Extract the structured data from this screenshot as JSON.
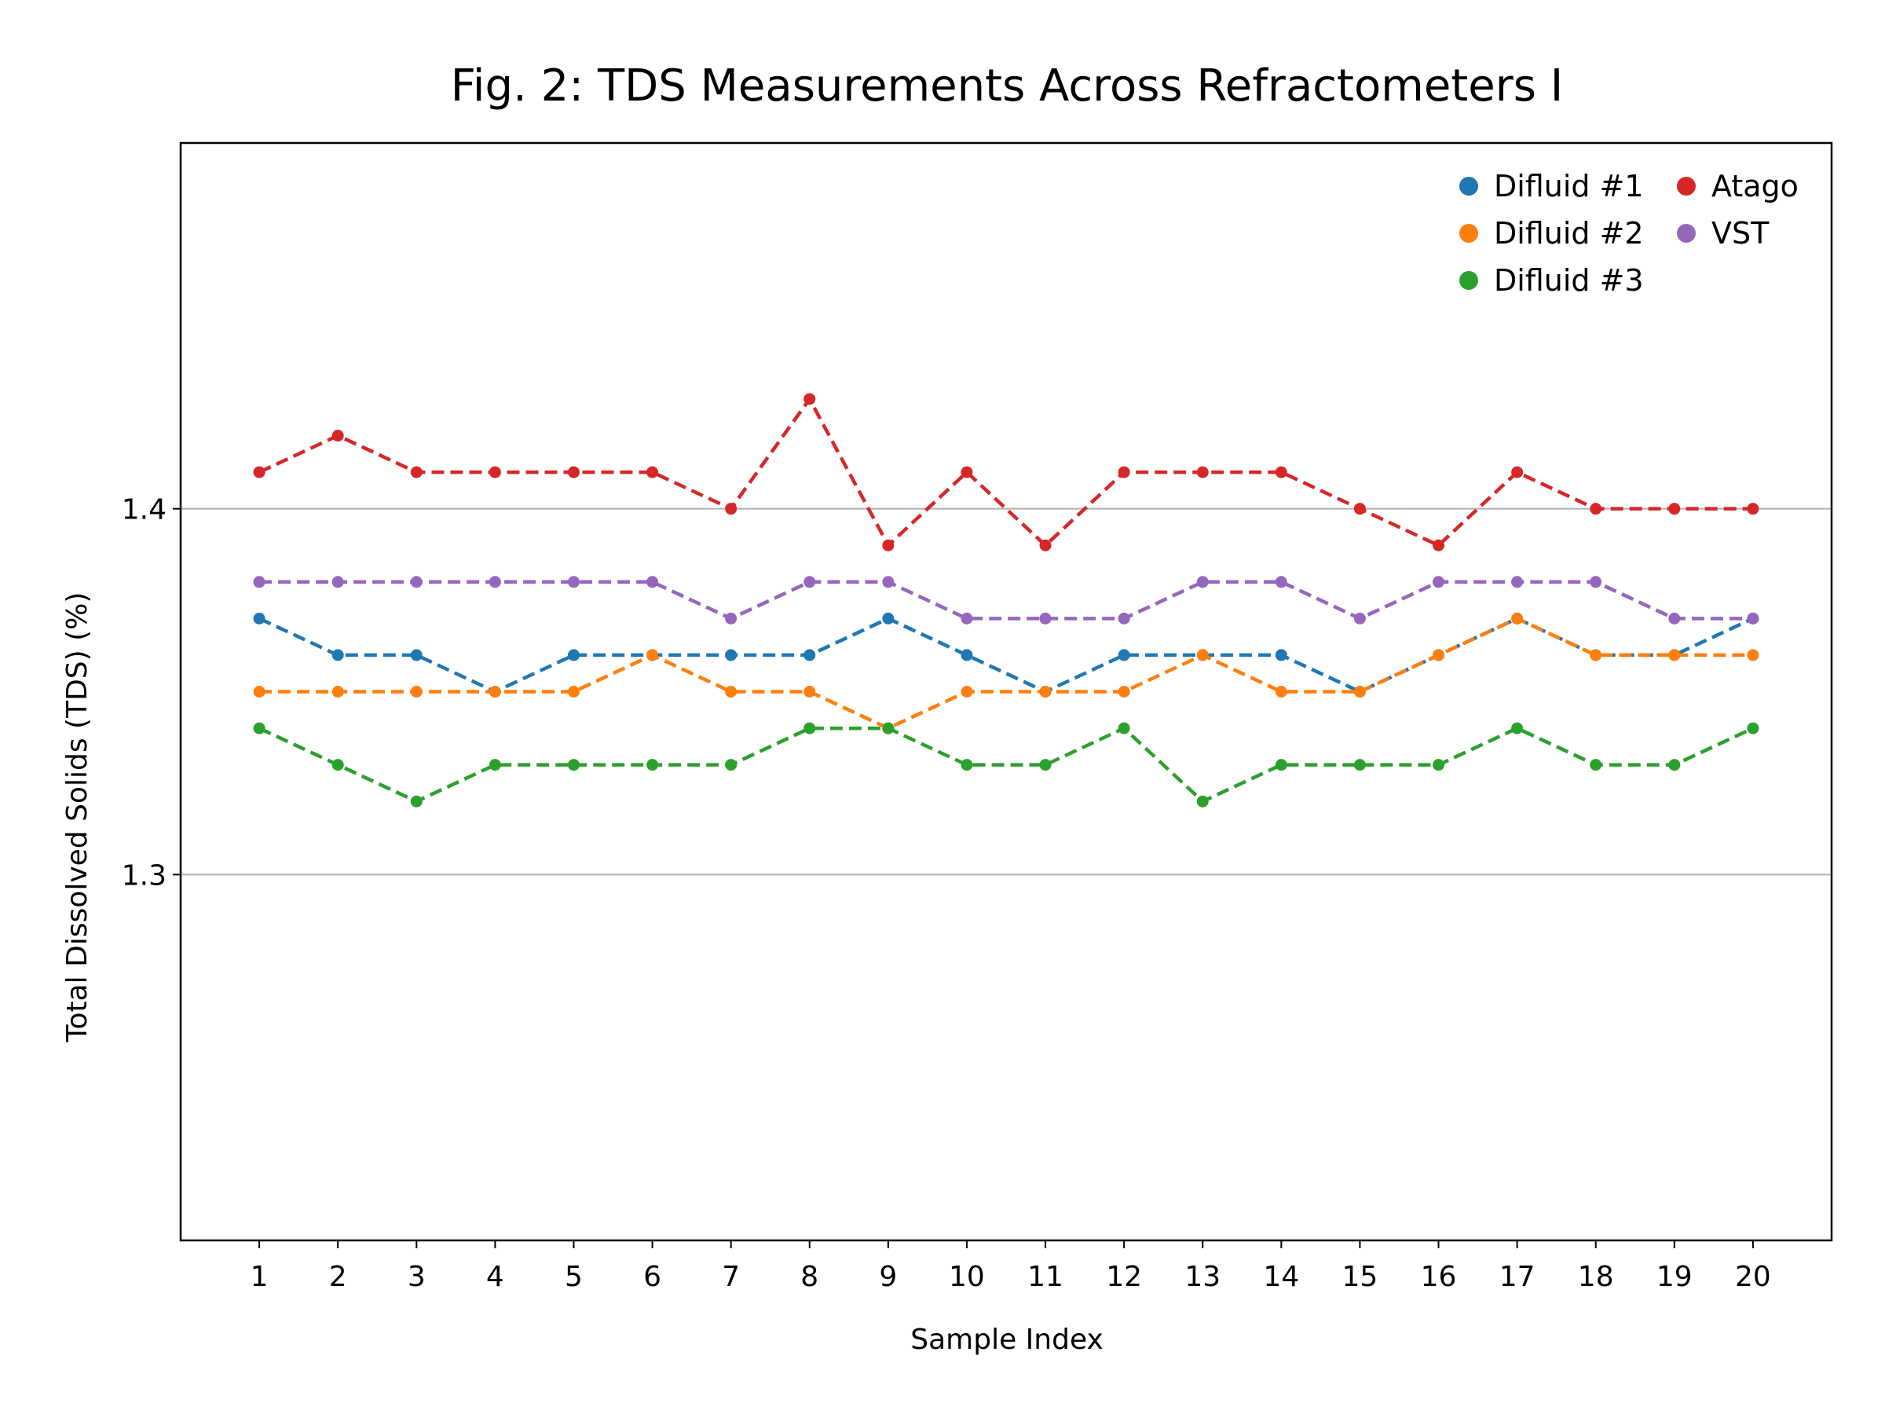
{
  "chart_data": {
    "type": "line",
    "title": "Fig. 2: TDS Measurements Across Refractometers I",
    "xlabel": "Sample Index",
    "ylabel": "Total Dissolved Solids (TDS) (%)",
    "x": [
      1,
      2,
      3,
      4,
      5,
      6,
      7,
      8,
      9,
      10,
      11,
      12,
      13,
      14,
      15,
      16,
      17,
      18,
      19,
      20
    ],
    "xtick_labels": [
      "1",
      "2",
      "3",
      "4",
      "5",
      "6",
      "7",
      "8",
      "9",
      "10",
      "11",
      "12",
      "13",
      "14",
      "15",
      "16",
      "17",
      "18",
      "19",
      "20"
    ],
    "xlim": [
      0,
      21
    ],
    "ylim": [
      1.2,
      1.5
    ],
    "yticks": [
      1.3,
      1.4
    ],
    "ytick_labels": [
      "1.3",
      "1.4"
    ],
    "grid": "horizontal",
    "line_style": "dashed",
    "marker": "circle",
    "legend_position": "top-right",
    "series": [
      {
        "name": "Difluid #1",
        "color": "#1f77b4",
        "values": [
          1.37,
          1.36,
          1.36,
          1.35,
          1.36,
          1.36,
          1.36,
          1.36,
          1.37,
          1.36,
          1.35,
          1.36,
          1.36,
          1.36,
          1.35,
          1.36,
          1.37,
          1.36,
          1.36,
          1.37
        ]
      },
      {
        "name": "Difluid #2",
        "color": "#ff7f0e",
        "values": [
          1.35,
          1.35,
          1.35,
          1.35,
          1.35,
          1.36,
          1.35,
          1.35,
          1.34,
          1.35,
          1.35,
          1.35,
          1.36,
          1.35,
          1.35,
          1.36,
          1.37,
          1.36,
          1.36,
          1.36
        ]
      },
      {
        "name": "Difluid #3",
        "color": "#2ca02c",
        "values": [
          1.34,
          1.33,
          1.32,
          1.33,
          1.33,
          1.33,
          1.33,
          1.34,
          1.34,
          1.33,
          1.33,
          1.34,
          1.32,
          1.33,
          1.33,
          1.33,
          1.34,
          1.33,
          1.33,
          1.34
        ]
      },
      {
        "name": "Atago",
        "color": "#d62728",
        "values": [
          1.41,
          1.42,
          1.41,
          1.41,
          1.41,
          1.41,
          1.4,
          1.43,
          1.39,
          1.41,
          1.39,
          1.41,
          1.41,
          1.41,
          1.4,
          1.39,
          1.41,
          1.4,
          1.4,
          1.4
        ]
      },
      {
        "name": "VST",
        "color": "#9467bd",
        "values": [
          1.38,
          1.38,
          1.38,
          1.38,
          1.38,
          1.38,
          1.37,
          1.38,
          1.38,
          1.37,
          1.37,
          1.37,
          1.38,
          1.38,
          1.37,
          1.38,
          1.38,
          1.38,
          1.37,
          1.37
        ]
      }
    ]
  }
}
